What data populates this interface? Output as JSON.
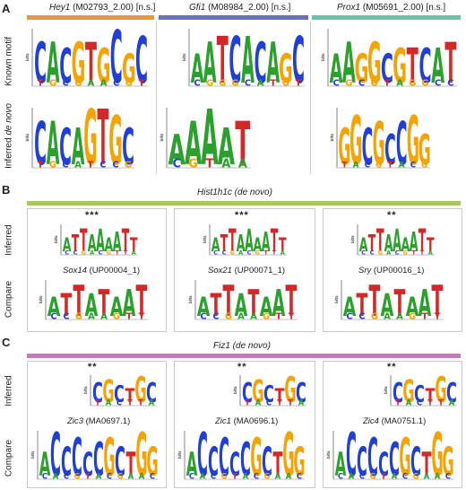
{
  "panels": {
    "A": {
      "label": "A",
      "headers": [
        {
          "gene": "Hey1",
          "id": " (M02793_2.00) [n.s.]",
          "color": "#e39a3e"
        },
        {
          "gene": "Gfi1",
          "id": " (M08984_2.00) [n.s.]",
          "color": "#6a73b8"
        },
        {
          "gene": "Prox1",
          "id": " (M05691_2.00) [n.s.]",
          "color": "#5ec9a8"
        }
      ],
      "row_known": "Known motif",
      "row_inferred_prefix": "Inferred ",
      "row_inferred_italic": "de novo"
    },
    "B": {
      "label": "B",
      "title_gene": "Hist1h1c",
      "title_suffix": " (de novo)",
      "bar_color": "#a4c95a",
      "row_inferred": "Inferred",
      "row_compare": "Compare",
      "significance": [
        "***",
        "***",
        "**"
      ],
      "compare": [
        {
          "gene": "Sox14",
          "id": " (UP00004_1)"
        },
        {
          "gene": "Sox21",
          "id": " (UP00071_1)"
        },
        {
          "gene": "Sry",
          "id": " (UP00016_1)"
        }
      ]
    },
    "C": {
      "label": "C",
      "title_gene": "Fiz1",
      "title_suffix": " (de novo)",
      "bar_color": "#c77ab8",
      "row_inferred": "Inferred",
      "row_compare": "Compare",
      "significance": [
        "**",
        "**",
        "**"
      ],
      "compare": [
        {
          "gene": "Zic3",
          "id": " (MA0697.1)"
        },
        {
          "gene": "Zic1",
          "id": " (MA0696.1)"
        },
        {
          "gene": "Zic4",
          "id": " (MA0751.1)"
        }
      ]
    }
  },
  "axis_unit": "bits",
  "base_colors": {
    "A": "#2ca02c",
    "C": "#1f3fd8",
    "G": "#f5a300",
    "T": "#d62728"
  },
  "logos": {
    "A_known": [
      "CACGTGCGC",
      "AATCACAGC",
      "AAGGCGTCAT"
    ],
    "A_inferred": [
      "CACAGTGC",
      "AAAAT",
      "GGCGCCGG"
    ],
    "B_inferred": [
      "ATTAAAATT",
      "ATTAAAATT",
      "ATTAAAATT"
    ],
    "B_compare": [
      "ATTATAAT",
      "ATTATAAT",
      "ATTATAAT"
    ],
    "C_inferred": [
      "CGCTGC",
      "CGCTGC",
      "CGCTGC"
    ],
    "C_compare": [
      "ACCCCCGCTGG",
      "ACCCCCGCTGG",
      "ACCCCCGCTGG"
    ]
  }
}
